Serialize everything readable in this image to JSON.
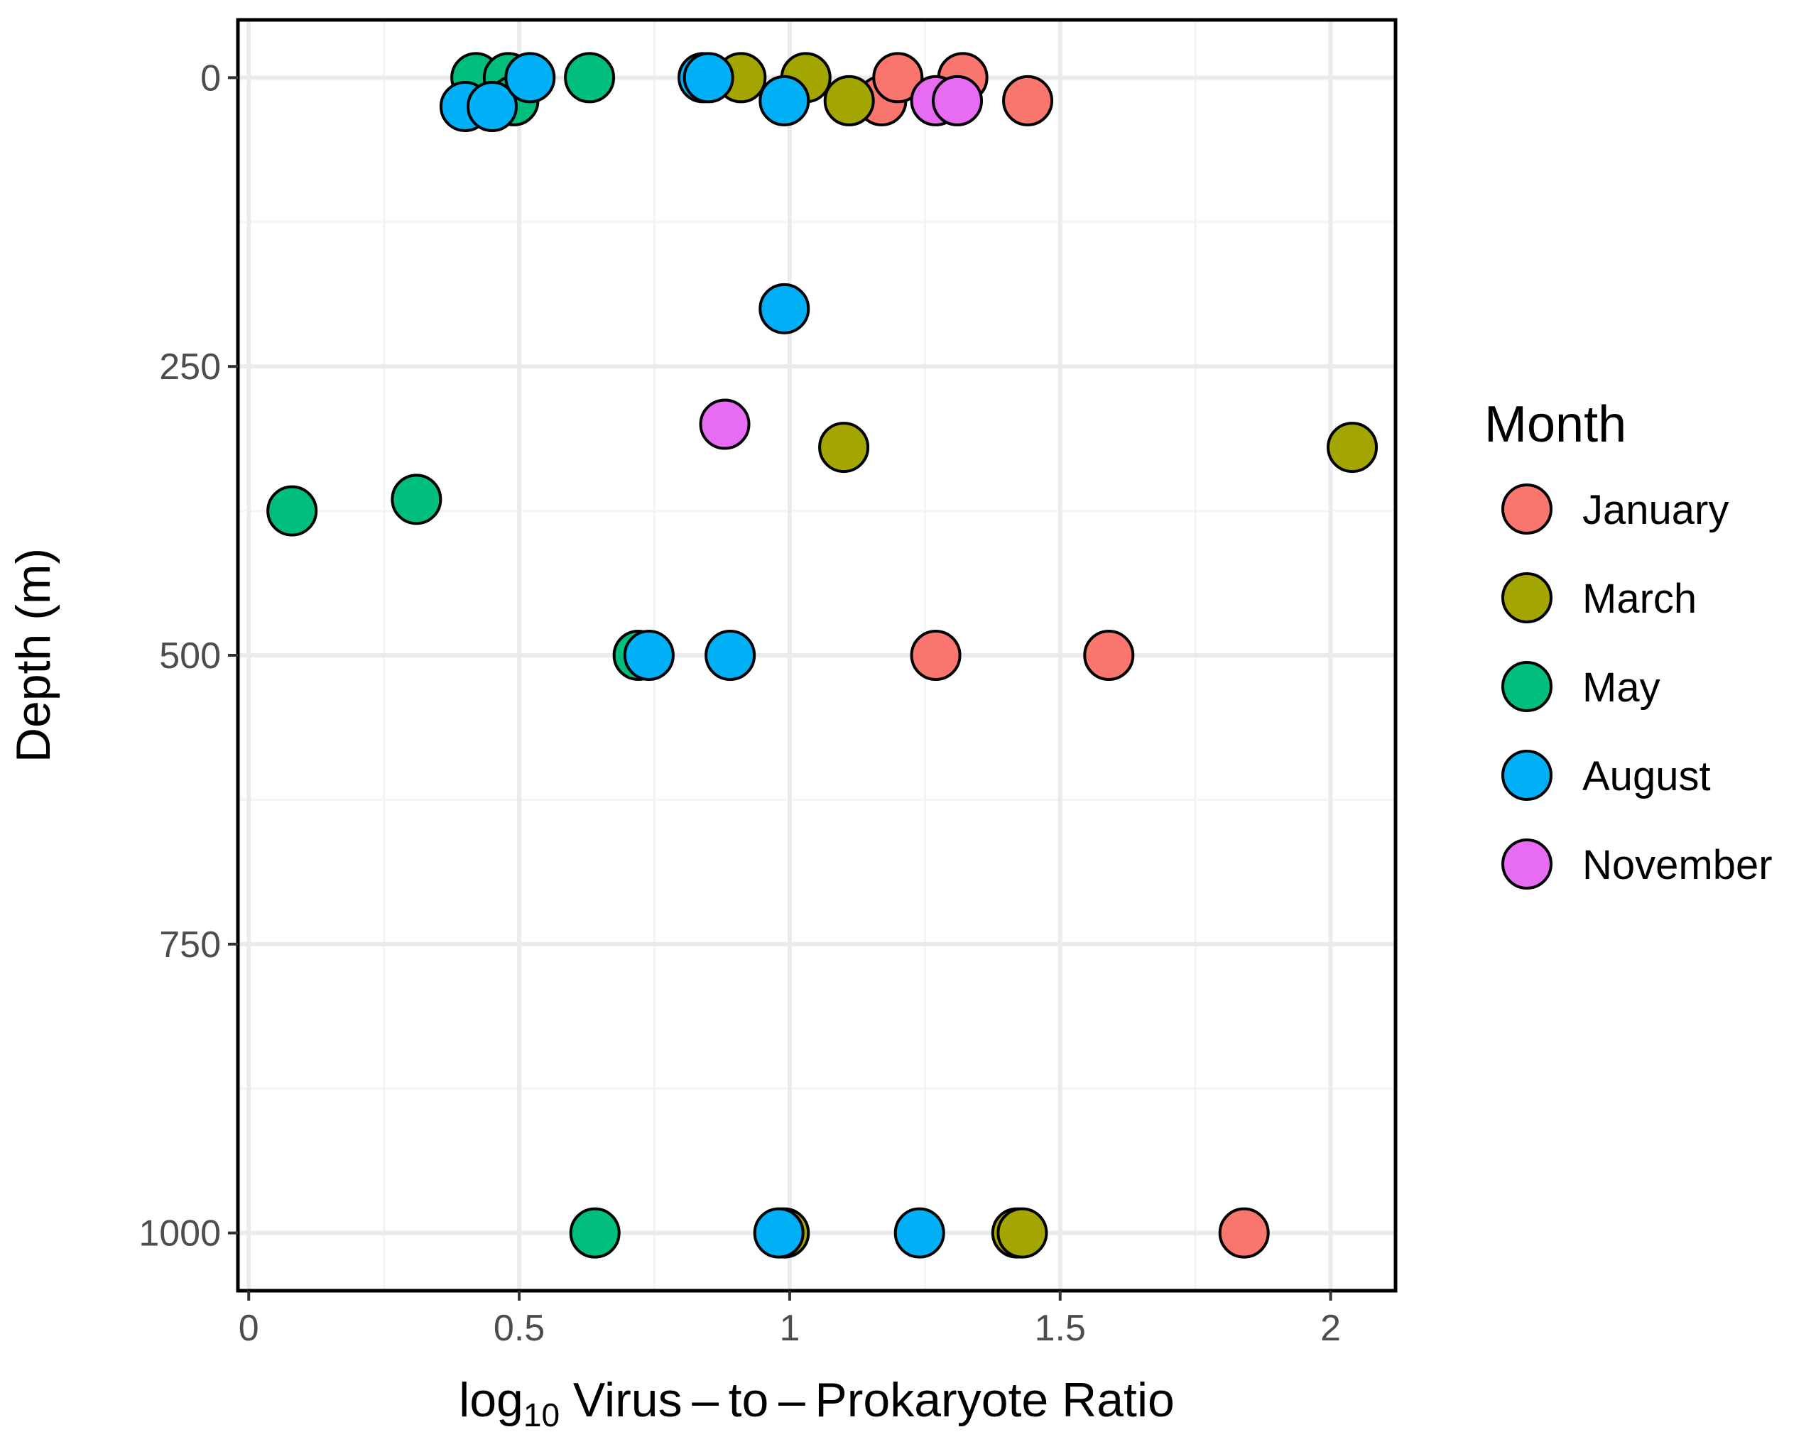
{
  "chart_data": {
    "type": "scatter",
    "title": "",
    "xlabel_prefix": "log",
    "xlabel_subscript": "10",
    "xlabel_rest": " Virus – to – Prokaryote Ratio",
    "ylabel": "Depth (m)",
    "xlim": [
      -0.02,
      2.12
    ],
    "ylim": [
      -50,
      1050
    ],
    "y_reversed": true,
    "x_ticks": [
      0,
      0.5,
      1,
      1.5,
      2
    ],
    "x_tick_labels": [
      "0",
      "0.5",
      "1",
      "1.5",
      "2"
    ],
    "y_ticks": [
      0,
      250,
      500,
      750,
      1000
    ],
    "y_tick_labels": [
      "0",
      "250",
      "500",
      "750",
      "1000"
    ],
    "grid": true,
    "legend_title": "Month",
    "legend_position": "right",
    "series": [
      {
        "name": "January",
        "color": "#F8766D",
        "points": [
          [
            1.17,
            20
          ],
          [
            1.2,
            0
          ],
          [
            1.32,
            0
          ],
          [
            1.44,
            20
          ],
          [
            1.27,
            500
          ],
          [
            1.59,
            500
          ],
          [
            1.84,
            1000
          ]
        ]
      },
      {
        "name": "March",
        "color": "#A3A500",
        "points": [
          [
            0.91,
            0
          ],
          [
            1.03,
            0
          ],
          [
            1.11,
            20
          ],
          [
            1.1,
            320
          ],
          [
            2.04,
            320
          ],
          [
            0.99,
            1000
          ],
          [
            1.42,
            1000
          ],
          [
            1.43,
            1000
          ]
        ]
      },
      {
        "name": "May",
        "color": "#00BF7D",
        "points": [
          [
            0.42,
            0
          ],
          [
            0.48,
            0
          ],
          [
            0.49,
            20
          ],
          [
            0.63,
            0
          ],
          [
            0.08,
            375
          ],
          [
            0.31,
            365
          ],
          [
            0.72,
            500
          ],
          [
            0.64,
            1000
          ]
        ]
      },
      {
        "name": "August",
        "color": "#00B0F6",
        "points": [
          [
            0.4,
            25
          ],
          [
            0.45,
            25
          ],
          [
            0.52,
            0
          ],
          [
            0.84,
            0
          ],
          [
            0.85,
            0
          ],
          [
            0.99,
            20
          ],
          [
            0.99,
            200
          ],
          [
            0.74,
            500
          ],
          [
            0.89,
            500
          ],
          [
            0.98,
            1000
          ],
          [
            1.24,
            1000
          ]
        ]
      },
      {
        "name": "November",
        "color": "#E76BF3",
        "points": [
          [
            1.27,
            20
          ],
          [
            1.31,
            20
          ],
          [
            0.88,
            300
          ]
        ]
      }
    ]
  }
}
